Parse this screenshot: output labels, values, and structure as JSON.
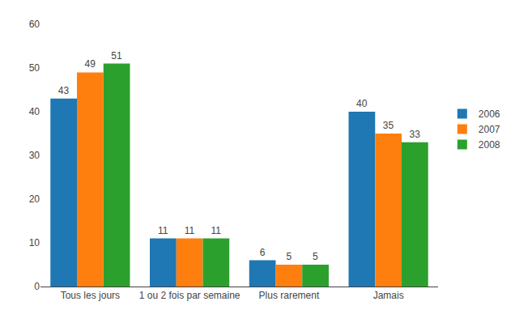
{
  "chart_data": {
    "type": "bar",
    "categories": [
      "Tous les jours",
      "1 ou 2 fois par semaine",
      "Plus rarement",
      "Jamais"
    ],
    "series": [
      {
        "name": "2006",
        "values": [
          43,
          11,
          6,
          40
        ]
      },
      {
        "name": "2007",
        "values": [
          49,
          11,
          5,
          35
        ]
      },
      {
        "name": "2008",
        "values": [
          51,
          11,
          5,
          33
        ]
      }
    ],
    "ylim": [
      0,
      60
    ],
    "yticks": [
      0,
      10,
      20,
      30,
      40,
      50,
      60
    ],
    "grid": false,
    "legend": "right",
    "data_labels": true
  }
}
